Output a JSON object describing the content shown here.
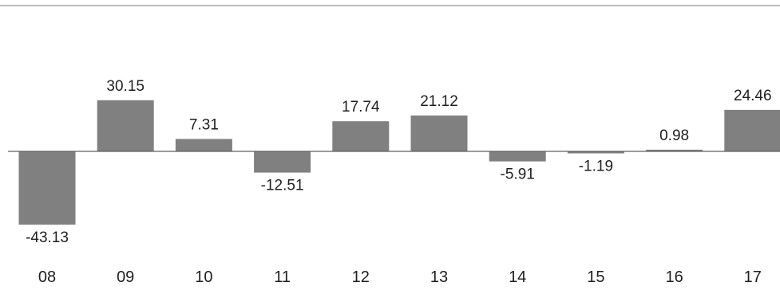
{
  "chart_data": {
    "type": "bar",
    "title": "",
    "xlabel": "",
    "ylabel": "",
    "categories": [
      "08",
      "09",
      "10",
      "11",
      "12",
      "13",
      "14",
      "15",
      "16",
      "17"
    ],
    "values": [
      -43.13,
      30.15,
      7.31,
      -12.51,
      17.74,
      21.12,
      -5.91,
      -1.19,
      0.98,
      24.46
    ],
    "data_labels": [
      "-43.13",
      "30.15",
      "7.31",
      "-12.51",
      "17.74",
      "21.12",
      "-5.91",
      "-1.19",
      "0.98",
      "24.46"
    ],
    "ylim": [
      -55,
      45
    ],
    "grid": false,
    "legend": "none",
    "colors": {
      "bar": "#808080",
      "baseline": "#606060",
      "top_rule": "#a6a6a6",
      "text": "#1f1f1f"
    }
  }
}
